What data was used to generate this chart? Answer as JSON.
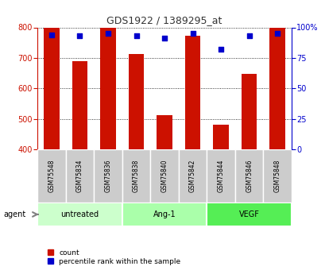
{
  "title": "GDS1922 / 1389295_at",
  "samples": [
    "GSM75548",
    "GSM75834",
    "GSM75836",
    "GSM75838",
    "GSM75840",
    "GSM75842",
    "GSM75844",
    "GSM75846",
    "GSM75848"
  ],
  "counts": [
    800,
    688,
    800,
    712,
    512,
    772,
    482,
    648,
    800
  ],
  "percentile_ranks": [
    94,
    93,
    95,
    93,
    91,
    95,
    82,
    93,
    95
  ],
  "ylim_left": [
    400,
    800
  ],
  "ylim_right": [
    0,
    100
  ],
  "yticks_left": [
    400,
    500,
    600,
    700,
    800
  ],
  "yticks_right": [
    0,
    25,
    50,
    75,
    100
  ],
  "ytick_right_labels": [
    "0",
    "25",
    "50",
    "75",
    "100%"
  ],
  "groups": [
    {
      "label": "untreated",
      "indices": [
        0,
        1,
        2
      ],
      "color": "#ccffcc"
    },
    {
      "label": "Ang-1",
      "indices": [
        3,
        4,
        5
      ],
      "color": "#aaffaa"
    },
    {
      "label": "VEGF",
      "indices": [
        6,
        7,
        8
      ],
      "color": "#55ee55"
    }
  ],
  "bar_color": "#cc1100",
  "dot_color": "#0000cc",
  "bar_width": 0.55,
  "left_axis_color": "#cc1100",
  "right_axis_color": "#0000cc",
  "background_color": "#ffffff",
  "sample_bg_color": "#cccccc",
  "agent_label": "agent"
}
